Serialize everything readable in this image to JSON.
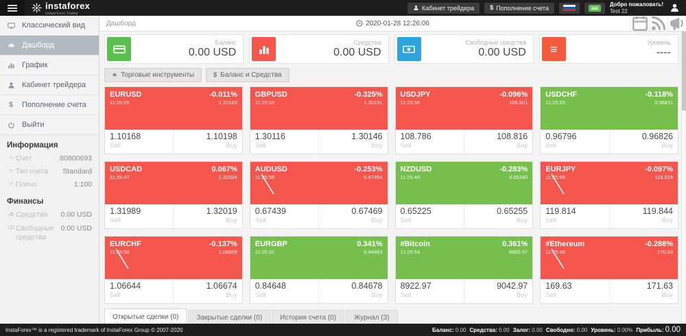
{
  "header": {
    "brand": "instaforex",
    "brand_sub": "Instant Forex Trading",
    "trader_cabinet": "Кабинет трейдера",
    "deposit": "Пополнение счета",
    "welcome_line1": "Добро пожаловать!",
    "welcome_line2": "Test 22"
  },
  "sidebar": {
    "menu": [
      {
        "id": "classic-view",
        "label": "Классический вид",
        "icon": "desktop-icon",
        "active": false
      },
      {
        "id": "dashboard",
        "label": "Дашборд",
        "icon": "dashboard-icon",
        "active": true
      },
      {
        "id": "chart",
        "label": "График",
        "icon": "bar-chart-icon",
        "active": false
      },
      {
        "id": "trader-cabinet",
        "label": "Кабинет трейдера",
        "icon": "user-icon",
        "active": false
      },
      {
        "id": "deposit",
        "label": "Пополнение счета",
        "icon": "dollar-icon",
        "active": false
      },
      {
        "id": "logout",
        "label": "Выйти",
        "icon": "power-icon",
        "active": false
      }
    ],
    "info_title": "Информация",
    "info_rows": [
      {
        "label": "Счет",
        "value": "80800693"
      },
      {
        "label": "Тип счета",
        "value": "Standard"
      },
      {
        "label": "Плечо",
        "value": "1:100"
      }
    ],
    "finance_title": "Финансы",
    "finance_rows": [
      {
        "label": "Средства",
        "value": "0.00 USD",
        "icon": "bar-chart-icon"
      },
      {
        "label": "Свободные средства",
        "value": "0.00 USD",
        "icon": "money-icon"
      }
    ]
  },
  "topbar": {
    "breadcrumb": "Дашборд",
    "datetime": "2020-01-28 12:26:06"
  },
  "cards": [
    {
      "label": "Баланс",
      "value": "0.00 USD",
      "icon": "credit-card-icon",
      "color": "#5abf4e"
    },
    {
      "label": "Средства",
      "value": "0.00 USD",
      "icon": "bar-chart-icon",
      "color": "#f4564e"
    },
    {
      "label": "Свободные средства",
      "value": "0.00 USD",
      "icon": "money-icon",
      "color": "#2fa4dc"
    },
    {
      "label": "Уровень",
      "value": "----",
      "icon": "list-icon",
      "color": "#f25b3c"
    }
  ],
  "actions": [
    {
      "id": "trading-instruments",
      "label": "Торговые инструменты",
      "icon": "star-icon"
    },
    {
      "id": "balance-funds",
      "label": "Баланс и Средства",
      "icon": "dollar-icon"
    }
  ],
  "tile_labels": {
    "sell": "Sell",
    "buy": "Buy"
  },
  "tiles": [
    {
      "symbol": "EURUSD",
      "time": "11:25:55",
      "change": "-0.011%",
      "mid": "1.10183",
      "sell": "1.10168",
      "buy": "1.10198",
      "trend": "red",
      "sparkline": false
    },
    {
      "symbol": "GBPUSD",
      "time": "11:25:55",
      "change": "-0.325%",
      "mid": "1.30131",
      "sell": "1.30116",
      "buy": "1.30146",
      "trend": "red",
      "sparkline": false
    },
    {
      "symbol": "USDJPY",
      "time": "11:25:56",
      "change": "-0.096%",
      "mid": "108.801",
      "sell": "108.786",
      "buy": "108.816",
      "trend": "red",
      "sparkline": false
    },
    {
      "symbol": "USDCHF",
      "time": "11:25:55",
      "change": "-0.118%",
      "mid": "0.96811",
      "sell": "0.96796",
      "buy": "0.96826",
      "trend": "green",
      "sparkline": false
    },
    {
      "symbol": "USDCAD",
      "time": "11:25:47",
      "change": "0.067%",
      "mid": "1.32004",
      "sell": "1.31989",
      "buy": "1.32019",
      "trend": "red",
      "sparkline": false
    },
    {
      "symbol": "AUDUSD",
      "time": "11:25:56",
      "change": "-0.253%",
      "mid": "0.67454",
      "sell": "0.67439",
      "buy": "0.67469",
      "trend": "red",
      "sparkline": true
    },
    {
      "symbol": "NZDUSD",
      "time": "11:25:40",
      "change": "-0.283%",
      "mid": "0.65240",
      "sell": "0.65225",
      "buy": "0.65255",
      "trend": "green",
      "sparkline": false
    },
    {
      "symbol": "EURJPY",
      "time": "11:25:56",
      "change": "-0.097%",
      "mid": "119.829",
      "sell": "119.814",
      "buy": "119.844",
      "trend": "red",
      "sparkline": true
    },
    {
      "symbol": "EURCHF",
      "time": "11:25:56",
      "change": "-0.137%",
      "mid": "1.06659",
      "sell": "1.06644",
      "buy": "1.06674",
      "trend": "red",
      "sparkline": true
    },
    {
      "symbol": "EURGBP",
      "time": "11:25:31",
      "change": "0.341%",
      "mid": "0.84663",
      "sell": "0.84648",
      "buy": "0.84678",
      "trend": "green",
      "sparkline": false
    },
    {
      "symbol": "#Bitcoin",
      "time": "11:25:54",
      "change": "0.361%",
      "mid": "8982.97",
      "sell": "8922.97",
      "buy": "9042.97",
      "trend": "green",
      "sparkline": false
    },
    {
      "symbol": "#Ethereum",
      "time": "11:25:49",
      "change": "-0.288%",
      "mid": "170.63",
      "sell": "169.63",
      "buy": "171.63",
      "trend": "red",
      "sparkline": true
    }
  ],
  "tabs": [
    {
      "label": "Открытые сделки (0)",
      "active": true
    },
    {
      "label": "Закрытые сделки (0)",
      "active": false
    },
    {
      "label": "История счета (0)",
      "active": false
    },
    {
      "label": "Журнал (3)",
      "active": false
    }
  ],
  "footer": {
    "copyright": "InstaForex™ is a registered trademark of InstaForex Group © 2007-2020",
    "stats": [
      {
        "label": "Баланс:",
        "value": "0.00"
      },
      {
        "label": "Средства:",
        "value": "0.00"
      },
      {
        "label": "Залог:",
        "value": "0.00"
      },
      {
        "label": "Свободно:",
        "value": "0.00"
      },
      {
        "label": "Уровень:",
        "value": "0.00%"
      },
      {
        "label": "Прибыль:",
        "value": "0.00"
      }
    ]
  },
  "colors": {
    "tile_red": "#f4564e",
    "tile_green": "#76bf4c",
    "topbar_bg": "#1d1d1d",
    "sidebar_active_bg": "#b3bbc2"
  }
}
